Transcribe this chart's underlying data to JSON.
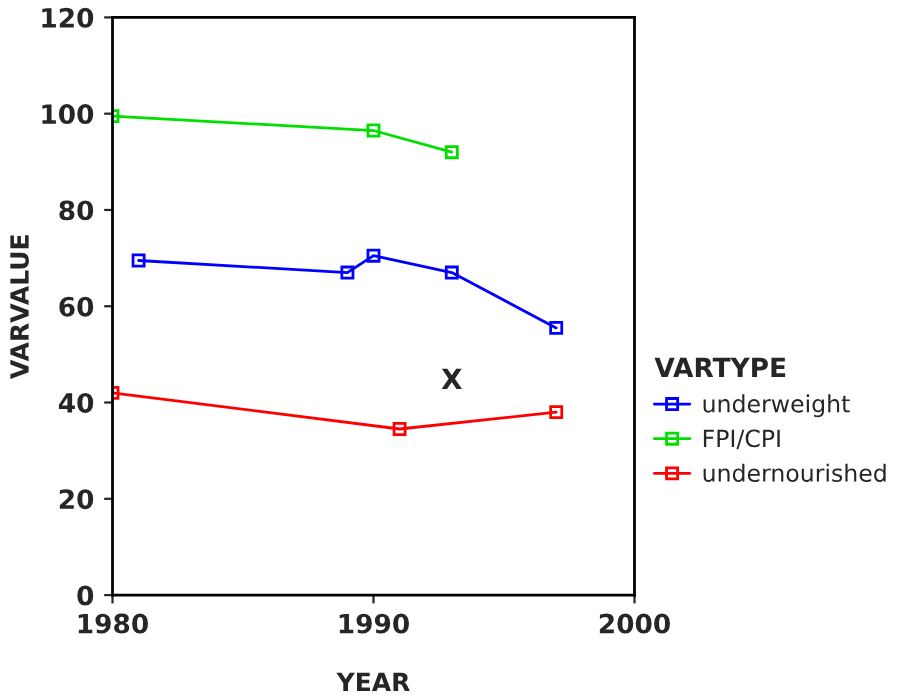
{
  "chart_data": {
    "type": "line",
    "xlabel": "YEAR",
    "ylabel": "VARVALUE",
    "legend_title": "VARTYPE",
    "xlim": [
      1980,
      2000
    ],
    "xticks": [
      1980,
      1990,
      2000
    ],
    "ylim": [
      0,
      120
    ],
    "yticks": [
      0,
      20,
      40,
      60,
      80,
      100,
      120
    ],
    "grid": false,
    "legend": "right",
    "marker": "square",
    "line_style": "solid",
    "series": [
      {
        "name": "underweight",
        "color": "#0000ff",
        "x": [
          1981,
          1989,
          1990,
          1993,
          1997
        ],
        "values": [
          69.5,
          67,
          70.5,
          67,
          55.5
        ]
      },
      {
        "name": "FPI/CPI",
        "color": "#00e000",
        "x": [
          1980,
          1990,
          1993
        ],
        "values": [
          99.5,
          96.5,
          92
        ]
      },
      {
        "name": "undernourished",
        "color": "#ff0000",
        "x": [
          1980,
          1991,
          1997
        ],
        "values": [
          42,
          34.5,
          38
        ]
      }
    ],
    "annotations": [
      "X"
    ]
  }
}
